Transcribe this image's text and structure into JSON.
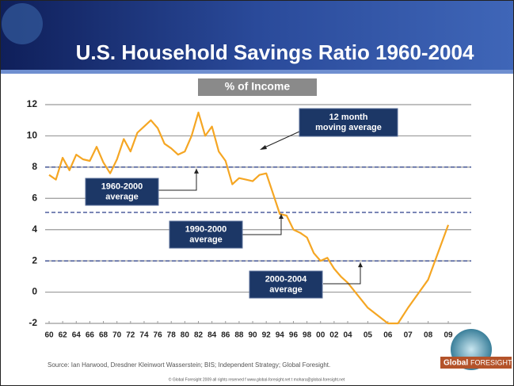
{
  "chart_data": {
    "type": "line",
    "title": "U.S. Household Savings Ratio 1960-2004",
    "y_label": "% of Income",
    "ylim": [
      -2,
      12
    ],
    "yticks": [
      -2,
      0,
      2,
      4,
      6,
      8,
      10,
      12
    ],
    "xlim": [
      1960,
      2009
    ],
    "xticks": [
      {
        "value": 1960,
        "label": "60"
      },
      {
        "value": 1962,
        "label": "62"
      },
      {
        "value": 1964,
        "label": "64"
      },
      {
        "value": 1966,
        "label": "66"
      },
      {
        "value": 1968,
        "label": "68"
      },
      {
        "value": 1970,
        "label": "70"
      },
      {
        "value": 1972,
        "label": "72"
      },
      {
        "value": 1974,
        "label": "74"
      },
      {
        "value": 1976,
        "label": "76"
      },
      {
        "value": 1978,
        "label": "78"
      },
      {
        "value": 1980,
        "label": "80"
      },
      {
        "value": 1982,
        "label": "82"
      },
      {
        "value": 1984,
        "label": "84"
      },
      {
        "value": 1986,
        "label": "86"
      },
      {
        "value": 1988,
        "label": "88"
      },
      {
        "value": 1990,
        "label": "90"
      },
      {
        "value": 1992,
        "label": "92"
      },
      {
        "value": 1994,
        "label": "94"
      },
      {
        "value": 1996,
        "label": "96"
      },
      {
        "value": 1998,
        "label": "98"
      },
      {
        "value": 2000,
        "label": "00"
      },
      {
        "value": 2002,
        "label": "02"
      },
      {
        "value": 2004,
        "label": "04"
      },
      {
        "value": 2005,
        "label": "05"
      },
      {
        "value": 2006,
        "label": "06"
      },
      {
        "value": 2007,
        "label": "07"
      },
      {
        "value": 2008,
        "label": "08"
      },
      {
        "value": 2009,
        "label": "09"
      }
    ],
    "grid": true,
    "series": [
      {
        "color": "#f5a623",
        "x": [
          1960,
          1961,
          1962,
          1963,
          1964,
          1965,
          1966,
          1967,
          1968,
          1969,
          1970,
          1971,
          1972,
          1973,
          1974,
          1975,
          1976,
          1977,
          1978,
          1979,
          1980,
          1981,
          1982,
          1983,
          1984,
          1985,
          1986,
          1987,
          1988,
          1989,
          1990,
          1991,
          1992,
          1993,
          1994,
          1995,
          1996,
          1997,
          1998,
          1999,
          2000,
          2001,
          2002,
          2003,
          2004,
          2005,
          2006,
          2006.5,
          2007,
          2008,
          2009
        ],
        "values": [
          7.5,
          7.2,
          8.6,
          7.8,
          8.8,
          8.5,
          8.4,
          9.3,
          8.3,
          7.6,
          8.5,
          9.8,
          9.0,
          10.2,
          10.6,
          11.0,
          10.5,
          9.5,
          9.2,
          8.8,
          9.0,
          10.0,
          11.5,
          10.0,
          10.6,
          9.0,
          8.4,
          6.9,
          7.3,
          7.2,
          7.1,
          7.5,
          7.6,
          6.3,
          5.0,
          4.9,
          4.0,
          3.8,
          3.5,
          2.5,
          2.0,
          2.2,
          1.5,
          1.0,
          0.6,
          -1.0,
          -2.0,
          -2.0,
          -1.0,
          0.8,
          4.3
        ]
      }
    ],
    "line_note": [
      "12 month",
      "moving average"
    ],
    "averages": [
      {
        "value": 8,
        "label": [
          "1960-2000",
          "average"
        ]
      },
      {
        "value": 5.1,
        "label": [
          "1990-2000",
          "average"
        ]
      },
      {
        "value": 2,
        "label": [
          "2000-2004",
          "average"
        ]
      }
    ],
    "source": "Source: Ian Harwood, Dresdner Kleinwort Wasserstein; BIS; Independent Strategy; Global Foresight.",
    "footer": "© Global Foresight 2009 all rights reserved  f www.global-foresight.net  t mohara@global-foresight.net",
    "logo": [
      "Global",
      "FORESIGHT"
    ]
  }
}
